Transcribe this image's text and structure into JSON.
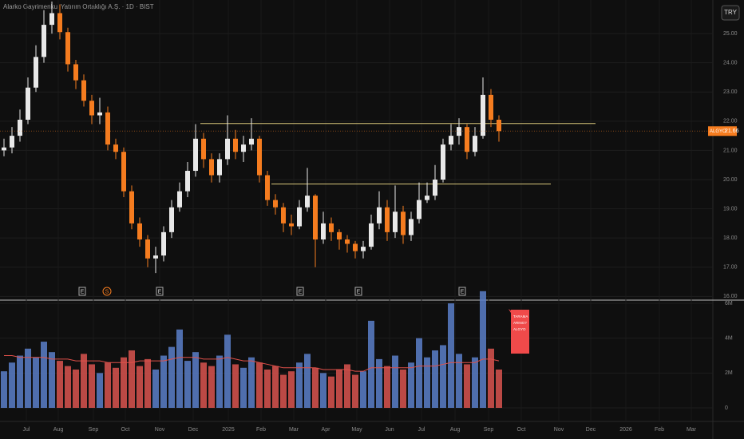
{
  "chart_data": {
    "type": "candlestick",
    "title": "Alarko Gayrimenkul Yatırım Ortaklığı A.Ş. · 1D · BIST",
    "currency": "TRY",
    "symbol": "ALGYO",
    "candles": [
      [
        21.0,
        21.4,
        20.8,
        21.1
      ],
      [
        21.1,
        21.8,
        20.9,
        21.5
      ],
      [
        21.5,
        22.4,
        21.3,
        22.05
      ],
      [
        22.05,
        23.5,
        21.9,
        23.15
      ],
      [
        23.15,
        24.6,
        23.0,
        24.2
      ],
      [
        24.2,
        25.8,
        24.0,
        25.3
      ],
      [
        25.3,
        26.1,
        25.0,
        25.7
      ],
      [
        25.7,
        26.0,
        24.8,
        25.05
      ],
      [
        25.05,
        25.2,
        23.7,
        23.95
      ],
      [
        23.95,
        24.1,
        23.1,
        23.4
      ],
      [
        23.4,
        23.6,
        22.5,
        22.7
      ],
      [
        22.7,
        22.9,
        21.9,
        22.2
      ],
      [
        22.2,
        22.8,
        21.9,
        22.3
      ],
      [
        22.3,
        22.5,
        21.0,
        21.2
      ],
      [
        21.2,
        21.4,
        20.7,
        20.95
      ],
      [
        20.95,
        21.1,
        19.4,
        19.6
      ],
      [
        19.6,
        19.8,
        18.3,
        18.5
      ],
      [
        18.5,
        18.7,
        17.7,
        17.95
      ],
      [
        17.95,
        18.1,
        17.0,
        17.3
      ],
      [
        17.3,
        17.7,
        16.8,
        17.4
      ],
      [
        17.4,
        18.4,
        17.2,
        18.2
      ],
      [
        18.2,
        19.3,
        18.0,
        19.05
      ],
      [
        19.05,
        19.9,
        18.9,
        19.6
      ],
      [
        19.6,
        20.6,
        19.4,
        20.3
      ],
      [
        20.3,
        21.9,
        20.1,
        21.4
      ],
      [
        21.4,
        21.6,
        20.4,
        20.7
      ],
      [
        20.7,
        20.9,
        19.9,
        20.15
      ],
      [
        20.15,
        20.9,
        19.9,
        20.7
      ],
      [
        20.7,
        22.2,
        20.5,
        21.4
      ],
      [
        21.4,
        21.7,
        20.7,
        20.95
      ],
      [
        20.95,
        21.5,
        20.6,
        21.2
      ],
      [
        21.2,
        22.1,
        21.0,
        21.4
      ],
      [
        21.4,
        21.5,
        19.9,
        20.15
      ],
      [
        20.15,
        20.3,
        19.1,
        19.3
      ],
      [
        19.3,
        19.5,
        18.8,
        19.05
      ],
      [
        19.05,
        19.2,
        18.2,
        18.5
      ],
      [
        18.5,
        18.8,
        18.1,
        18.4
      ],
      [
        18.4,
        19.3,
        18.3,
        19.05
      ],
      [
        19.05,
        20.4,
        18.9,
        19.45
      ],
      [
        19.45,
        19.5,
        17.0,
        17.95
      ],
      [
        17.95,
        18.9,
        17.8,
        18.5
      ],
      [
        18.5,
        18.7,
        17.9,
        18.2
      ],
      [
        18.2,
        18.3,
        17.6,
        17.95
      ],
      [
        17.95,
        18.1,
        17.5,
        17.8
      ],
      [
        17.8,
        17.9,
        17.3,
        17.55
      ],
      [
        17.55,
        17.9,
        17.3,
        17.7
      ],
      [
        17.7,
        18.8,
        17.6,
        18.5
      ],
      [
        18.5,
        19.6,
        18.3,
        19.05
      ],
      [
        19.05,
        19.3,
        17.9,
        18.2
      ],
      [
        18.2,
        19.8,
        18.0,
        18.9
      ],
      [
        18.9,
        19.1,
        17.8,
        18.1
      ],
      [
        18.1,
        18.9,
        17.9,
        18.65
      ],
      [
        18.65,
        19.9,
        18.5,
        19.3
      ],
      [
        19.3,
        19.9,
        19.2,
        19.45
      ],
      [
        19.45,
        20.5,
        19.3,
        20.0
      ],
      [
        20.0,
        21.4,
        19.9,
        21.2
      ],
      [
        21.2,
        21.9,
        21.0,
        21.5
      ],
      [
        21.5,
        22.1,
        21.2,
        21.8
      ],
      [
        21.8,
        21.9,
        20.7,
        20.95
      ],
      [
        20.95,
        21.8,
        20.8,
        21.5
      ],
      [
        21.5,
        23.5,
        21.4,
        22.9
      ],
      [
        22.9,
        23.1,
        21.8,
        22.05
      ],
      [
        22.05,
        22.2,
        21.3,
        21.66
      ]
    ],
    "volumes": [
      2.1,
      2.6,
      3.0,
      3.4,
      2.9,
      3.8,
      3.2,
      2.7,
      2.4,
      2.2,
      3.1,
      2.5,
      2.0,
      2.6,
      2.3,
      2.9,
      3.3,
      2.4,
      2.8,
      2.2,
      3.0,
      3.5,
      4.5,
      2.7,
      3.2,
      2.6,
      2.4,
      3.0,
      4.2,
      2.5,
      2.3,
      2.9,
      2.6,
      2.2,
      2.4,
      1.9,
      2.1,
      2.6,
      3.1,
      2.3,
      2.0,
      1.8,
      2.2,
      2.5,
      1.9,
      2.1,
      5.0,
      2.8,
      2.4,
      3.0,
      2.2,
      2.6,
      4.0,
      2.9,
      3.3,
      3.6,
      6.0,
      3.1,
      2.5,
      2.9,
      6.7,
      3.4,
      2.2
    ],
    "volume_ma": [
      3.0,
      3.0,
      2.9,
      2.9,
      2.9,
      2.9,
      2.8,
      2.8,
      2.8,
      2.7,
      2.7,
      2.7,
      2.7,
      2.6,
      2.6,
      2.6,
      2.6,
      2.7,
      2.7,
      2.7,
      2.7,
      2.8,
      2.9,
      2.9,
      2.9,
      2.8,
      2.8,
      2.8,
      2.9,
      2.8,
      2.7,
      2.7,
      2.6,
      2.5,
      2.4,
      2.3,
      2.3,
      2.3,
      2.3,
      2.3,
      2.2,
      2.2,
      2.2,
      2.2,
      2.1,
      2.1,
      2.3,
      2.3,
      2.3,
      2.3,
      2.3,
      2.3,
      2.4,
      2.4,
      2.4,
      2.5,
      2.6,
      2.6,
      2.6,
      2.6,
      2.8,
      2.8,
      2.7
    ],
    "levels": [
      21.92,
      19.85
    ],
    "ylim": [
      15.9,
      26.15
    ],
    "yticks": [
      {
        "value": 16,
        "label": "16.00"
      },
      {
        "value": 17,
        "label": "17.00"
      },
      {
        "value": 18,
        "label": "18.00"
      },
      {
        "value": 19,
        "label": "19.00"
      },
      {
        "value": 20,
        "label": "20.00"
      },
      {
        "value": 21,
        "label": "21.00"
      },
      {
        "value": 22,
        "label": "22.00"
      },
      {
        "value": 23,
        "label": "23.00"
      },
      {
        "value": 24,
        "label": "24.00"
      },
      {
        "value": 25,
        "label": "25.00"
      }
    ],
    "volume_ylim": [
      0,
      7.24
    ],
    "volume_yticks": [
      0,
      {
        "value": 2,
        "label": "2M"
      },
      {
        "value": 4,
        "label": "4M"
      },
      {
        "value": 6,
        "label": "6M"
      }
    ],
    "time_labels": [
      "Jul",
      "Aug",
      "Sep",
      "Oct",
      "Nov",
      "Dec",
      "2025",
      "Feb",
      "Mar",
      "Apr",
      "May",
      "Jun",
      "Jul",
      "Aug",
      "Sep",
      "Oct",
      "Nov",
      "Dec",
      "2026",
      "Feb",
      "Mar"
    ],
    "events": [
      "E",
      "S",
      "E",
      "E",
      "E",
      "E"
    ],
    "alert": [
      "TARAMA",
      "ARING?",
      "ALGYO"
    ],
    "colors": {
      "up": "#e8e8e8",
      "down": "#f57c1f",
      "vol_up": "#5b7fc9",
      "vol_down": "#d9534f",
      "ma": "#e0504a",
      "level": "#d8c77a"
    }
  }
}
